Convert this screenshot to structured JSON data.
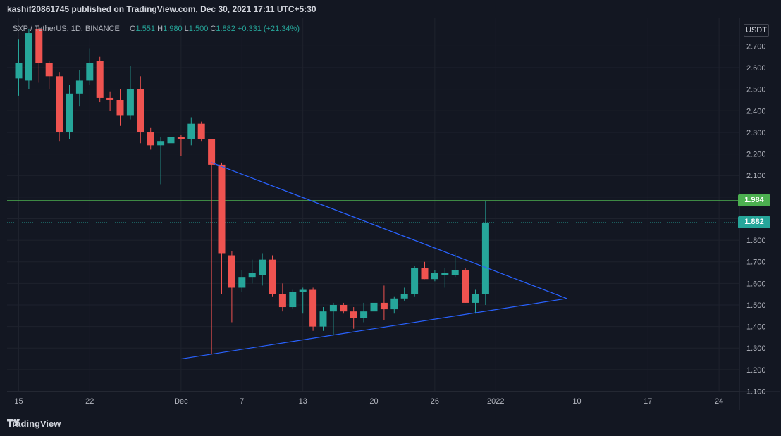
{
  "header": {
    "published_by": "kashif20861745 published on TradingView.com, Dec 30, 2021 17:11 UTC+5:30"
  },
  "legend": {
    "symbol": "SXP / TetherUS, 1D, BINANCE",
    "o_label": "O",
    "o_value": "1.551",
    "h_label": "H",
    "h_value": "1.980",
    "l_label": "L",
    "l_value": "1.500",
    "c_label": "C",
    "c_value": "1.882",
    "change": "+0.331 (+21.34%)"
  },
  "price_axis": {
    "currency": "USDT"
  },
  "tags": {
    "resistance": "1.984",
    "last_price": "1.882"
  },
  "colors": {
    "background": "#131722",
    "up": "#26a69a",
    "down": "#ef5350",
    "trendline": "#2962ff",
    "resistance": "#4caf50",
    "grid": "#1e222d"
  },
  "footer": {
    "brand": "TradingView"
  },
  "chart_data": {
    "type": "candlestick",
    "symbol": "SXP / TetherUS",
    "interval": "1D",
    "ylim": [
      1.1,
      2.75
    ],
    "y_ticks": [
      "1.100",
      "1.200",
      "1.300",
      "1.400",
      "1.500",
      "1.600",
      "1.700",
      "1.800",
      "1.900",
      "2.000",
      "2.100",
      "2.200",
      "2.300",
      "2.400",
      "2.500",
      "2.600",
      "2.700"
    ],
    "x_ticks": [
      {
        "label": "15",
        "day": 0
      },
      {
        "label": "22",
        "day": 7
      },
      {
        "label": "Dec",
        "day": 16
      },
      {
        "label": "7",
        "day": 22
      },
      {
        "label": "13",
        "day": 28
      },
      {
        "label": "20",
        "day": 35
      },
      {
        "label": "26",
        "day": 41
      },
      {
        "label": "2022",
        "day": 47
      },
      {
        "label": "10",
        "day": 55
      },
      {
        "label": "17",
        "day": 62
      },
      {
        "label": "24",
        "day": 69
      }
    ],
    "candles": [
      {
        "date": "2021-11-15",
        "open": 2.55,
        "high": 2.73,
        "low": 2.47,
        "close": 2.62
      },
      {
        "date": "2021-11-16",
        "open": 2.54,
        "high": 2.78,
        "low": 2.5,
        "close": 2.76
      },
      {
        "date": "2021-11-17",
        "open": 2.78,
        "high": 2.8,
        "low": 2.53,
        "close": 2.62
      },
      {
        "date": "2021-11-18",
        "open": 2.62,
        "high": 2.63,
        "low": 2.5,
        "close": 2.56
      },
      {
        "date": "2021-11-19",
        "open": 2.56,
        "high": 2.58,
        "low": 2.26,
        "close": 2.3
      },
      {
        "date": "2021-11-20",
        "open": 2.3,
        "high": 2.52,
        "low": 2.27,
        "close": 2.48
      },
      {
        "date": "2021-11-21",
        "open": 2.48,
        "high": 2.59,
        "low": 2.42,
        "close": 2.54
      },
      {
        "date": "2021-11-22",
        "open": 2.54,
        "high": 2.69,
        "low": 2.52,
        "close": 2.62
      },
      {
        "date": "2021-11-23",
        "open": 2.63,
        "high": 2.65,
        "low": 2.44,
        "close": 2.46
      },
      {
        "date": "2021-11-24",
        "open": 2.46,
        "high": 2.49,
        "low": 2.4,
        "close": 2.45
      },
      {
        "date": "2021-11-25",
        "open": 2.45,
        "high": 2.5,
        "low": 2.33,
        "close": 2.38
      },
      {
        "date": "2021-11-26",
        "open": 2.38,
        "high": 2.61,
        "low": 2.36,
        "close": 2.5
      },
      {
        "date": "2021-11-27",
        "open": 2.5,
        "high": 2.56,
        "low": 2.25,
        "close": 2.3
      },
      {
        "date": "2021-11-28",
        "open": 2.3,
        "high": 2.32,
        "low": 2.22,
        "close": 2.24
      },
      {
        "date": "2021-11-29",
        "open": 2.24,
        "high": 2.28,
        "low": 2.06,
        "close": 2.26
      },
      {
        "date": "2021-11-30",
        "open": 2.25,
        "high": 2.3,
        "low": 2.23,
        "close": 2.28
      },
      {
        "date": "2021-12-01",
        "open": 2.28,
        "high": 2.29,
        "low": 2.19,
        "close": 2.27
      },
      {
        "date": "2021-12-02",
        "open": 2.27,
        "high": 2.37,
        "low": 2.24,
        "close": 2.34
      },
      {
        "date": "2021-12-03",
        "open": 2.34,
        "high": 2.35,
        "low": 2.26,
        "close": 2.27
      },
      {
        "date": "2021-12-04",
        "open": 2.27,
        "high": 2.27,
        "low": 1.27,
        "close": 2.15
      },
      {
        "date": "2021-12-05",
        "open": 2.15,
        "high": 2.16,
        "low": 1.55,
        "close": 1.74
      },
      {
        "date": "2021-12-06",
        "open": 1.73,
        "high": 1.75,
        "low": 1.42,
        "close": 1.58
      },
      {
        "date": "2021-12-07",
        "open": 1.58,
        "high": 1.66,
        "low": 1.56,
        "close": 1.63
      },
      {
        "date": "2021-12-08",
        "open": 1.63,
        "high": 1.71,
        "low": 1.6,
        "close": 1.65
      },
      {
        "date": "2021-12-09",
        "open": 1.64,
        "high": 1.74,
        "low": 1.59,
        "close": 1.71
      },
      {
        "date": "2021-12-10",
        "open": 1.71,
        "high": 1.73,
        "low": 1.54,
        "close": 1.55
      },
      {
        "date": "2021-12-11",
        "open": 1.55,
        "high": 1.6,
        "low": 1.47,
        "close": 1.49
      },
      {
        "date": "2021-12-12",
        "open": 1.49,
        "high": 1.57,
        "low": 1.48,
        "close": 1.56
      },
      {
        "date": "2021-12-13",
        "open": 1.56,
        "high": 1.58,
        "low": 1.46,
        "close": 1.57
      },
      {
        "date": "2021-12-14",
        "open": 1.57,
        "high": 1.58,
        "low": 1.38,
        "close": 1.4
      },
      {
        "date": "2021-12-15",
        "open": 1.4,
        "high": 1.49,
        "low": 1.38,
        "close": 1.47
      },
      {
        "date": "2021-12-16",
        "open": 1.47,
        "high": 1.51,
        "low": 1.36,
        "close": 1.5
      },
      {
        "date": "2021-12-17",
        "open": 1.5,
        "high": 1.51,
        "low": 1.46,
        "close": 1.47
      },
      {
        "date": "2021-12-18",
        "open": 1.47,
        "high": 1.49,
        "low": 1.39,
        "close": 1.44
      },
      {
        "date": "2021-12-19",
        "open": 1.44,
        "high": 1.51,
        "low": 1.42,
        "close": 1.47
      },
      {
        "date": "2021-12-20",
        "open": 1.47,
        "high": 1.58,
        "low": 1.45,
        "close": 1.51
      },
      {
        "date": "2021-12-21",
        "open": 1.51,
        "high": 1.59,
        "low": 1.43,
        "close": 1.48
      },
      {
        "date": "2021-12-22",
        "open": 1.48,
        "high": 1.54,
        "low": 1.46,
        "close": 1.53
      },
      {
        "date": "2021-12-23",
        "open": 1.53,
        "high": 1.58,
        "low": 1.52,
        "close": 1.55
      },
      {
        "date": "2021-12-24",
        "open": 1.55,
        "high": 1.68,
        "low": 1.54,
        "close": 1.67
      },
      {
        "date": "2021-12-25",
        "open": 1.67,
        "high": 1.7,
        "low": 1.62,
        "close": 1.62
      },
      {
        "date": "2021-12-26",
        "open": 1.62,
        "high": 1.66,
        "low": 1.61,
        "close": 1.65
      },
      {
        "date": "2021-12-27",
        "open": 1.64,
        "high": 1.67,
        "low": 1.58,
        "close": 1.65
      },
      {
        "date": "2021-12-28",
        "open": 1.64,
        "high": 1.74,
        "low": 1.63,
        "close": 1.66
      },
      {
        "date": "2021-12-29",
        "open": 1.66,
        "high": 1.67,
        "low": 1.51,
        "close": 1.51
      },
      {
        "date": "2021-12-30",
        "open": 1.51,
        "high": 1.57,
        "low": 1.46,
        "close": 1.55
      },
      {
        "date": "2021-12-31",
        "open": 1.551,
        "high": 1.98,
        "low": 1.5,
        "close": 1.882
      }
    ],
    "horizontal_lines": [
      {
        "value": 1.984,
        "color": "#4caf50",
        "style": "solid"
      },
      {
        "value": 1.882,
        "color": "#26a69a",
        "style": "dotted"
      }
    ],
    "trendlines": [
      {
        "from": {
          "day": 19,
          "value": 2.16
        },
        "to": {
          "day": 54,
          "value": 1.53
        }
      },
      {
        "from": {
          "day": 16,
          "value": 1.25
        },
        "to": {
          "day": 54,
          "value": 1.53
        }
      }
    ],
    "grid": true
  }
}
